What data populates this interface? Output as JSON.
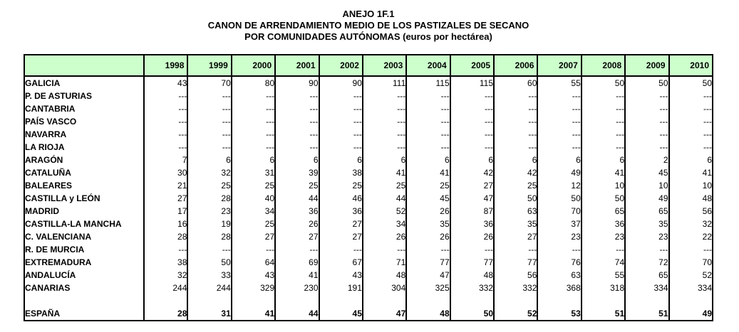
{
  "title": {
    "line1": "ANEJO 1F.1",
    "line2": "CANON DE ARRENDAMIENTO MEDIO DE LOS PASTIZALES DE SECANO",
    "line3": "POR COMUNIDADES AUTÓNOMAS (euros por hectárea)"
  },
  "table": {
    "header_bg": "#CCFFCC",
    "border_color": "#000000",
    "no_data_marker": "---",
    "years": [
      "1998",
      "1999",
      "2000",
      "2001",
      "2002",
      "2003",
      "2004",
      "2005",
      "2006",
      "2007",
      "2008",
      "2009",
      "2010"
    ],
    "rows": [
      {
        "label": "GALICIA",
        "values": [
          "43",
          "70",
          "80",
          "90",
          "90",
          "111",
          "115",
          "115",
          "60",
          "55",
          "50",
          "50",
          "50"
        ]
      },
      {
        "label": "P. DE ASTURIAS",
        "values": [
          "---",
          "---",
          "---",
          "---",
          "---",
          "---",
          "---",
          "---",
          "---",
          "---",
          "---",
          "---",
          "---"
        ]
      },
      {
        "label": "CANTABRIA",
        "values": [
          "---",
          "---",
          "---",
          "---",
          "---",
          "---",
          "---",
          "---",
          "---",
          "---",
          "---",
          "---",
          "---"
        ]
      },
      {
        "label": "PAÍS VASCO",
        "values": [
          "---",
          "---",
          "---",
          "---",
          "---",
          "---",
          "---",
          "---",
          "---",
          "---",
          "---",
          "---",
          "---"
        ]
      },
      {
        "label": "NAVARRA",
        "values": [
          "---",
          "---",
          "---",
          "---",
          "---",
          "---",
          "---",
          "---",
          "---",
          "---",
          "---",
          "---",
          "---"
        ]
      },
      {
        "label": "LA RIOJA",
        "values": [
          "---",
          "---",
          "---",
          "---",
          "---",
          "---",
          "---",
          "---",
          "---",
          "---",
          "---",
          "---",
          "---"
        ]
      },
      {
        "label": "ARAGÓN",
        "values": [
          "7",
          "6",
          "6",
          "6",
          "6",
          "6",
          "6",
          "6",
          "6",
          "6",
          "6",
          "2",
          "6"
        ]
      },
      {
        "label": "CATALUÑA",
        "values": [
          "30",
          "32",
          "31",
          "39",
          "38",
          "41",
          "41",
          "42",
          "42",
          "49",
          "41",
          "45",
          "41"
        ]
      },
      {
        "label": "BALEARES",
        "values": [
          "21",
          "25",
          "25",
          "25",
          "25",
          "25",
          "25",
          "27",
          "25",
          "12",
          "10",
          "10",
          "10"
        ]
      },
      {
        "label": "CASTILLA y  LEÓN",
        "values": [
          "27",
          "28",
          "40",
          "44",
          "46",
          "44",
          "45",
          "47",
          "50",
          "50",
          "50",
          "49",
          "48"
        ]
      },
      {
        "label": "MADRID",
        "values": [
          "17",
          "23",
          "34",
          "36",
          "36",
          "52",
          "26",
          "87",
          "63",
          "70",
          "65",
          "65",
          "56"
        ]
      },
      {
        "label": "CASTILLA-LA MANCHA",
        "values": [
          "16",
          "19",
          "25",
          "26",
          "27",
          "34",
          "35",
          "36",
          "35",
          "37",
          "36",
          "35",
          "32"
        ]
      },
      {
        "label": "C. VALENCIANA",
        "values": [
          "28",
          "28",
          "27",
          "27",
          "27",
          "26",
          "26",
          "26",
          "27",
          "23",
          "23",
          "23",
          "22"
        ]
      },
      {
        "label": "R. DE MURCIA",
        "values": [
          "---",
          "---",
          "---",
          "---",
          "---",
          "---",
          "---",
          "---",
          "---",
          "---",
          "---",
          "---",
          "---"
        ]
      },
      {
        "label": "EXTREMADURA",
        "values": [
          "38",
          "50",
          "64",
          "69",
          "67",
          "71",
          "77",
          "77",
          "77",
          "76",
          "74",
          "72",
          "70"
        ]
      },
      {
        "label": "ANDALUCÍA",
        "values": [
          "32",
          "33",
          "43",
          "41",
          "43",
          "48",
          "47",
          "48",
          "56",
          "63",
          "55",
          "65",
          "52"
        ]
      },
      {
        "label": "CANARIAS",
        "values": [
          "244",
          "244",
          "329",
          "230",
          "191",
          "304",
          "325",
          "332",
          "332",
          "368",
          "318",
          "334",
          "334"
        ]
      }
    ],
    "summary_row": {
      "label": "ESPAÑA",
      "values": [
        "28",
        "31",
        "41",
        "44",
        "45",
        "47",
        "48",
        "50",
        "52",
        "53",
        "51",
        "51",
        "49"
      ]
    }
  }
}
